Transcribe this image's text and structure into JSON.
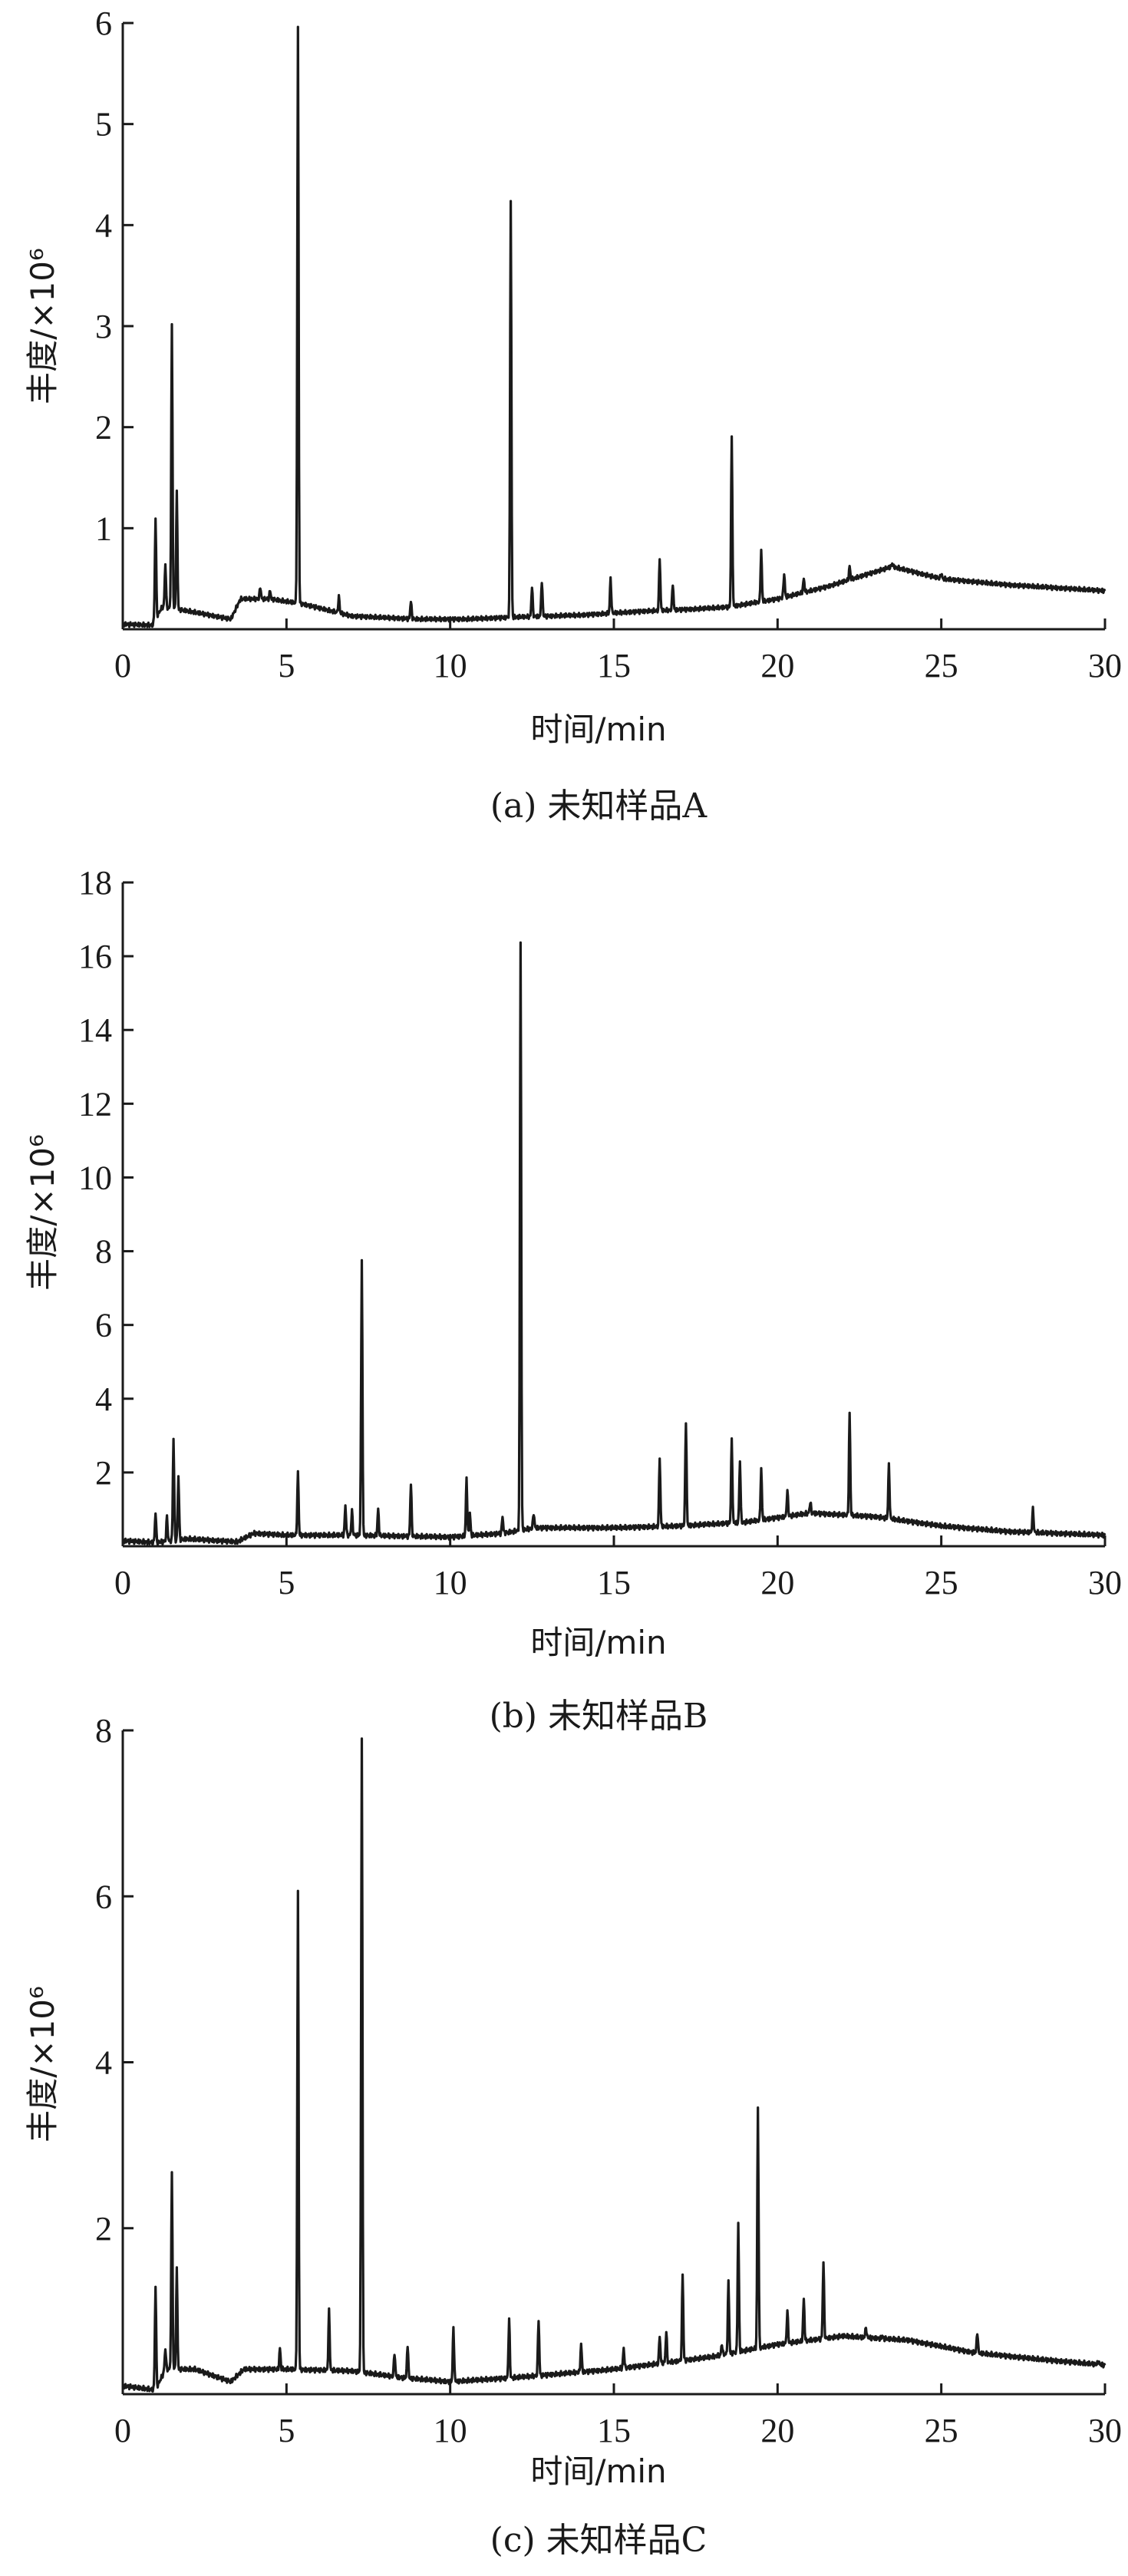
{
  "chart_data": [
    {
      "type": "line",
      "caption": "(a) 未知样品A",
      "xlabel": "时间/min",
      "ylabel": "丰度/×10⁶",
      "xlim": [
        0,
        30
      ],
      "ylim": [
        0,
        6
      ],
      "x_ticks": [
        0,
        5,
        10,
        15,
        20,
        25,
        30
      ],
      "y_ticks": [
        1,
        2,
        3,
        4,
        5,
        6
      ],
      "baseline": [
        [
          0,
          0.05
        ],
        [
          0.9,
          0.04
        ],
        [
          1.2,
          0.22
        ],
        [
          2,
          0.18
        ],
        [
          3.3,
          0.1
        ],
        [
          3.6,
          0.3
        ],
        [
          4.5,
          0.3
        ],
        [
          5.5,
          0.25
        ],
        [
          7,
          0.13
        ],
        [
          9,
          0.1
        ],
        [
          10.5,
          0.1
        ],
        [
          12,
          0.12
        ],
        [
          14,
          0.14
        ],
        [
          16,
          0.18
        ],
        [
          17.5,
          0.2
        ],
        [
          18.5,
          0.22
        ],
        [
          20,
          0.3
        ],
        [
          21.5,
          0.42
        ],
        [
          23.5,
          0.62
        ],
        [
          25,
          0.5
        ],
        [
          27,
          0.44
        ],
        [
          30,
          0.38
        ]
      ],
      "peaks": [
        [
          1.0,
          1.1
        ],
        [
          1.3,
          0.65
        ],
        [
          1.5,
          3.0
        ],
        [
          1.65,
          1.35
        ],
        [
          4.2,
          0.42
        ],
        [
          4.5,
          0.38
        ],
        [
          5.35,
          5.95
        ],
        [
          6.6,
          0.32
        ],
        [
          8.8,
          0.28
        ],
        [
          11.85,
          4.25
        ],
        [
          12.5,
          0.42
        ],
        [
          12.8,
          0.48
        ],
        [
          14.9,
          0.5
        ],
        [
          16.4,
          0.7
        ],
        [
          16.8,
          0.45
        ],
        [
          18.6,
          1.9
        ],
        [
          19.5,
          0.78
        ],
        [
          20.2,
          0.55
        ],
        [
          20.8,
          0.5
        ],
        [
          22.2,
          0.62
        ],
        [
          23.5,
          0.65
        ],
        [
          25.0,
          0.55
        ],
        [
          28.2,
          0.42
        ]
      ]
    },
    {
      "type": "line",
      "caption": "(b) 未知样品B",
      "xlabel": "时间/min",
      "ylabel": "丰度/×10⁶",
      "xlim": [
        0,
        30
      ],
      "ylim": [
        0,
        18
      ],
      "x_ticks": [
        0,
        5,
        10,
        15,
        20,
        25,
        30
      ],
      "y_ticks": [
        2,
        4,
        6,
        8,
        10,
        12,
        14,
        16,
        18
      ],
      "baseline": [
        [
          0,
          0.15
        ],
        [
          1,
          0.1
        ],
        [
          2,
          0.2
        ],
        [
          3.5,
          0.12
        ],
        [
          4,
          0.35
        ],
        [
          5,
          0.3
        ],
        [
          7,
          0.3
        ],
        [
          10,
          0.25
        ],
        [
          11.6,
          0.35
        ],
        [
          12.6,
          0.5
        ],
        [
          15,
          0.5
        ],
        [
          17,
          0.55
        ],
        [
          19,
          0.65
        ],
        [
          21,
          0.9
        ],
        [
          23,
          0.8
        ],
        [
          25,
          0.55
        ],
        [
          27,
          0.4
        ],
        [
          30,
          0.3
        ]
      ],
      "peaks": [
        [
          1.0,
          0.9
        ],
        [
          1.35,
          0.8
        ],
        [
          1.55,
          2.9
        ],
        [
          1.7,
          1.9
        ],
        [
          5.35,
          2.0
        ],
        [
          6.8,
          1.1
        ],
        [
          7.0,
          0.95
        ],
        [
          7.3,
          7.75
        ],
        [
          7.8,
          1.0
        ],
        [
          8.8,
          1.7
        ],
        [
          10.5,
          1.85
        ],
        [
          10.6,
          0.9
        ],
        [
          11.6,
          0.8
        ],
        [
          12.15,
          16.4
        ],
        [
          12.55,
          0.9
        ],
        [
          16.4,
          2.4
        ],
        [
          17.2,
          3.4
        ],
        [
          18.6,
          2.9
        ],
        [
          18.85,
          2.3
        ],
        [
          19.5,
          2.1
        ],
        [
          20.3,
          1.5
        ],
        [
          21.0,
          1.2
        ],
        [
          22.2,
          3.6
        ],
        [
          23.4,
          2.2
        ],
        [
          27.8,
          1.0
        ]
      ]
    },
    {
      "type": "line",
      "caption": "(c) 未知样品C",
      "xlabel": "时间/min",
      "ylabel": "丰度/×10⁶",
      "xlim": [
        0,
        30
      ],
      "ylim": [
        0,
        8
      ],
      "x_ticks": [
        0,
        5,
        10,
        15,
        20,
        25,
        30
      ],
      "y_ticks": [
        2,
        4,
        6,
        8
      ],
      "baseline": [
        [
          0,
          0.1
        ],
        [
          1,
          0.05
        ],
        [
          1.3,
          0.3
        ],
        [
          2.2,
          0.3
        ],
        [
          3.3,
          0.15
        ],
        [
          3.7,
          0.3
        ],
        [
          5,
          0.3
        ],
        [
          7,
          0.28
        ],
        [
          8.5,
          0.2
        ],
        [
          10,
          0.15
        ],
        [
          12,
          0.2
        ],
        [
          15,
          0.3
        ],
        [
          18,
          0.45
        ],
        [
          20,
          0.6
        ],
        [
          22,
          0.7
        ],
        [
          24,
          0.65
        ],
        [
          26,
          0.5
        ],
        [
          28,
          0.42
        ],
        [
          30,
          0.35
        ]
      ],
      "peaks": [
        [
          1.0,
          1.3
        ],
        [
          1.3,
          0.55
        ],
        [
          1.5,
          2.65
        ],
        [
          1.65,
          1.5
        ],
        [
          4.8,
          0.55
        ],
        [
          5.35,
          6.05
        ],
        [
          6.3,
          1.0
        ],
        [
          7.3,
          7.9
        ],
        [
          8.3,
          0.5
        ],
        [
          8.7,
          0.6
        ],
        [
          10.1,
          0.8
        ],
        [
          11.8,
          0.9
        ],
        [
          12.7,
          0.9
        ],
        [
          14.0,
          0.6
        ],
        [
          15.3,
          0.55
        ],
        [
          16.4,
          0.7
        ],
        [
          16.6,
          0.75
        ],
        [
          17.1,
          1.45
        ],
        [
          18.3,
          0.6
        ],
        [
          18.5,
          1.35
        ],
        [
          18.8,
          2.05
        ],
        [
          19.4,
          3.45
        ],
        [
          20.3,
          1.0
        ],
        [
          20.8,
          1.15
        ],
        [
          21.4,
          1.6
        ],
        [
          22.7,
          0.8
        ],
        [
          23.2,
          0.7
        ],
        [
          26.1,
          0.75
        ],
        [
          29.8,
          0.4
        ]
      ]
    }
  ]
}
